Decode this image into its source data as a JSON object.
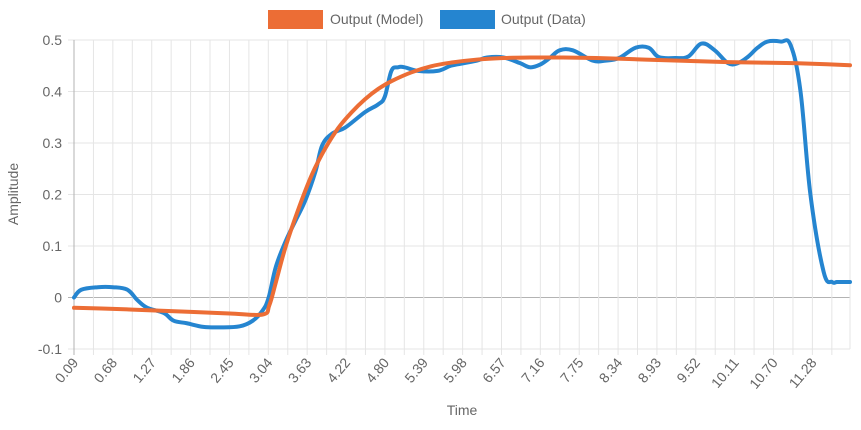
{
  "chart_data": {
    "type": "line",
    "xlabel": "Time",
    "ylabel": "Amplitude",
    "ylim": [
      -0.1,
      0.5
    ],
    "yticks": [
      "-0.1",
      "0",
      "0.1",
      "0.2",
      "0.3",
      "0.4",
      "0.5"
    ],
    "x_tick_labels": [
      "0.09",
      "0.68",
      "1.27",
      "1.86",
      "2.45",
      "3.04",
      "3.63",
      "4.22",
      "4.80",
      "5.39",
      "5.98",
      "6.57",
      "7.16",
      "7.75",
      "8.34",
      "8.93",
      "9.52",
      "10.11",
      "10.70",
      "11.28"
    ],
    "xlim": [
      0.09,
      11.85
    ],
    "grid": true,
    "legend_position": "top-center",
    "series": [
      {
        "name": "Output (Model)",
        "color": "#ec6d35",
        "x": [
          0.09,
          0.68,
          1.27,
          1.86,
          2.45,
          2.95,
          3.05,
          3.15,
          3.3,
          3.5,
          3.7,
          3.9,
          4.1,
          4.3,
          4.5,
          4.7,
          4.9,
          5.2,
          5.5,
          5.8,
          6.2,
          6.6,
          7.0,
          7.5,
          8.0,
          8.5,
          9.0,
          9.5,
          10.0,
          10.5,
          11.0,
          11.5,
          11.85
        ],
        "y": [
          -0.02,
          -0.022,
          -0.025,
          -0.028,
          -0.031,
          -0.033,
          -0.015,
          0.03,
          0.1,
          0.175,
          0.24,
          0.29,
          0.33,
          0.36,
          0.385,
          0.405,
          0.42,
          0.437,
          0.449,
          0.456,
          0.462,
          0.465,
          0.466,
          0.466,
          0.465,
          0.463,
          0.461,
          0.459,
          0.457,
          0.456,
          0.455,
          0.453,
          0.451
        ]
      },
      {
        "name": "Output (Data)",
        "color": "#2585d0",
        "x": [
          0.09,
          0.2,
          0.45,
          0.68,
          0.9,
          1.05,
          1.2,
          1.45,
          1.6,
          1.8,
          2.05,
          2.3,
          2.6,
          2.8,
          2.95,
          3.04,
          3.15,
          3.3,
          3.45,
          3.6,
          3.75,
          3.85,
          4.0,
          4.2,
          4.5,
          4.7,
          4.8,
          4.9,
          5.0,
          5.1,
          5.3,
          5.6,
          5.8,
          6.0,
          6.2,
          6.35,
          6.6,
          6.85,
          7.0,
          7.15,
          7.3,
          7.45,
          7.65,
          7.95,
          8.15,
          8.35,
          8.6,
          8.8,
          8.95,
          9.2,
          9.4,
          9.6,
          9.8,
          10.0,
          10.15,
          10.3,
          10.45,
          10.6,
          10.8,
          10.95,
          11.1,
          11.25,
          11.45,
          11.58,
          11.65,
          11.72,
          11.8,
          11.85
        ],
        "y": [
          0.0,
          0.015,
          0.02,
          0.02,
          0.015,
          -0.005,
          -0.02,
          -0.03,
          -0.045,
          -0.05,
          -0.057,
          -0.058,
          -0.056,
          -0.045,
          -0.025,
          0.0,
          0.06,
          0.11,
          0.15,
          0.19,
          0.245,
          0.295,
          0.318,
          0.33,
          0.36,
          0.375,
          0.39,
          0.44,
          0.447,
          0.447,
          0.44,
          0.44,
          0.45,
          0.455,
          0.46,
          0.466,
          0.466,
          0.455,
          0.447,
          0.452,
          0.465,
          0.48,
          0.48,
          0.46,
          0.46,
          0.465,
          0.485,
          0.485,
          0.467,
          0.465,
          0.468,
          0.493,
          0.48,
          0.455,
          0.455,
          0.467,
          0.485,
          0.497,
          0.497,
          0.49,
          0.4,
          0.2,
          0.05,
          0.03,
          0.03,
          0.03,
          0.03,
          0.03
        ]
      }
    ]
  }
}
